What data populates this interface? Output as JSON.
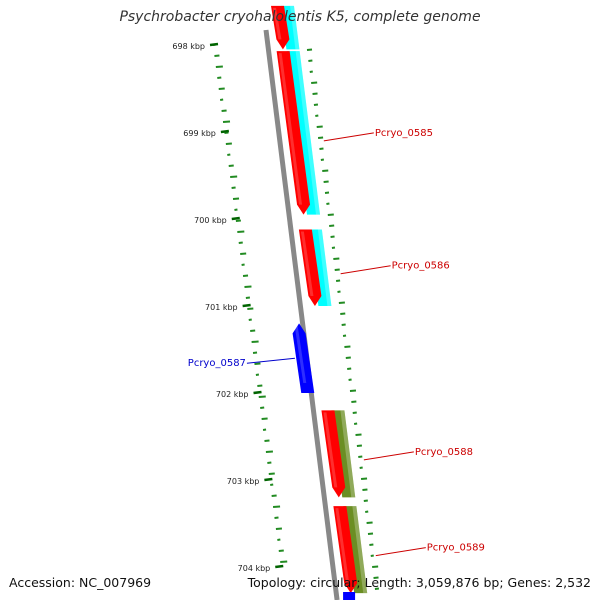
{
  "title": "Psychrobacter cryohalolentis K5, complete genome",
  "accession_text": "Accession: NC_007969",
  "stats_text": "Topology: circular; Length: 3,059,876 bp; Genes: 2,532",
  "colors": {
    "backbone": "#888888",
    "forward_cds": "#ff0000",
    "reverse_cds": "#0000ff",
    "cog_cyan": "#00ffff",
    "cog_olive": "#6b8e23",
    "gc_ticks": "#228b22",
    "scale_ticks": "#006400",
    "label_forward": "#cc0000",
    "label_reverse": "#0000cc"
  },
  "scale_ticks": [
    {
      "label": "698 kbp",
      "kbp": 698
    },
    {
      "label": "699 kbp",
      "kbp": 699
    },
    {
      "label": "700 kbp",
      "kbp": 700
    },
    {
      "label": "701 kbp",
      "kbp": 701
    },
    {
      "label": "702 kbp",
      "kbp": 702
    },
    {
      "label": "703 kbp",
      "kbp": 703
    },
    {
      "label": "704 kbp",
      "kbp": 704
    }
  ],
  "genes": [
    {
      "name": "",
      "strand": "forward",
      "start_kbp": 697.55,
      "end_kbp": 698.05,
      "cog": "cyan"
    },
    {
      "name": "Pcryo_0585",
      "strand": "forward",
      "start_kbp": 698.07,
      "end_kbp": 699.95,
      "cog": "cyan"
    },
    {
      "name": "Pcryo_0586",
      "strand": "forward",
      "start_kbp": 700.12,
      "end_kbp": 701.0,
      "cog": "cyan"
    },
    {
      "name": "Pcryo_0587",
      "strand": "reverse",
      "start_kbp": 701.2,
      "end_kbp": 702.0,
      "cog": ""
    },
    {
      "name": "Pcryo_0588",
      "strand": "forward",
      "start_kbp": 702.2,
      "end_kbp": 703.2,
      "cog": "olive"
    },
    {
      "name": "Pcryo_0589",
      "strand": "forward",
      "start_kbp": 703.3,
      "end_kbp": 704.3,
      "cog": "olive"
    }
  ]
}
